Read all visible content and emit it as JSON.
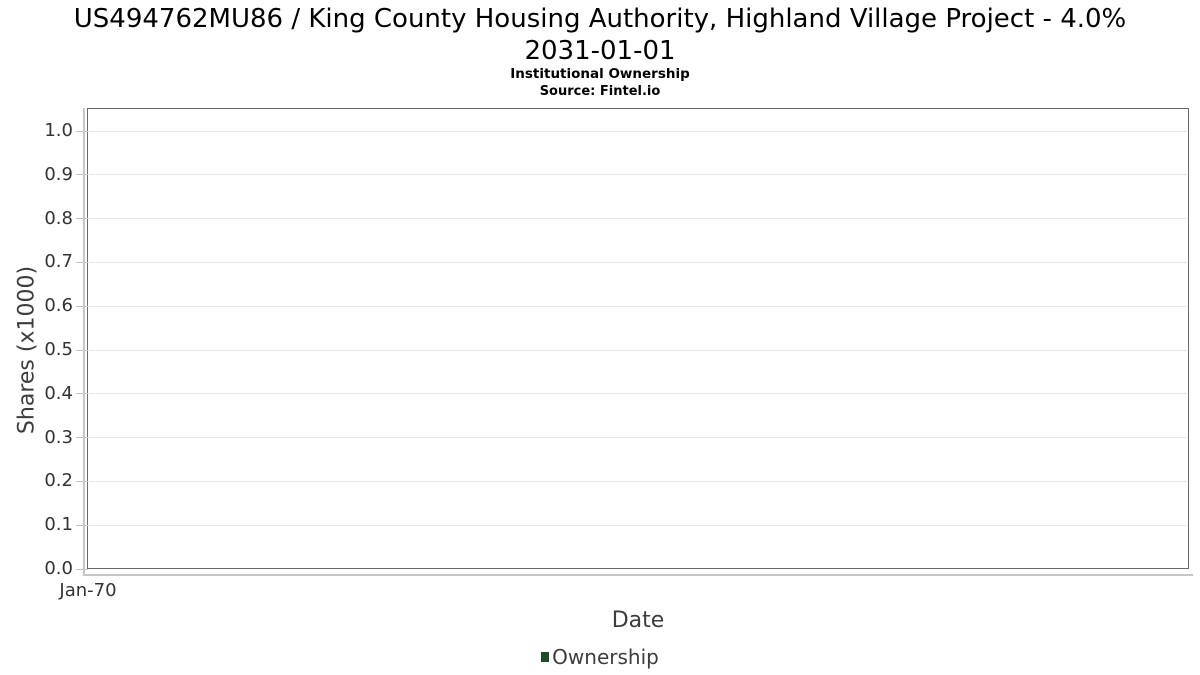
{
  "header": {
    "title_line1": "US494762MU86 / King County Housing Authority, Highland Village Project - 4.0%",
    "title_line2": "2031-01-01",
    "subtitle": "Institutional Ownership",
    "source": "Source: Fintel.io"
  },
  "chart_data": {
    "type": "line",
    "title": "US494762MU86 / King County Housing Authority, Highland Village Project - 4.0% 2031-01-01",
    "subtitle": "Institutional Ownership",
    "source": "Source: Fintel.io",
    "xlabel": "Date",
    "ylabel": "Shares (x1000)",
    "ylim": [
      0.0,
      1.05
    ],
    "yticks": [
      0.0,
      0.1,
      0.2,
      0.3,
      0.4,
      0.5,
      0.6,
      0.7,
      0.8,
      0.9,
      1.0
    ],
    "xticks": [
      "Jan-70"
    ],
    "grid": true,
    "legend_position": "bottom",
    "series": [
      {
        "name": "Ownership",
        "color": "#1f4b28",
        "x": [],
        "values": []
      }
    ]
  },
  "colors": {
    "plot_border": "#6a6a6a",
    "gridline": "#e6e6e6",
    "axis_line": "#c6c6c6",
    "tick_label": "#333333",
    "axis_title": "#3d3d3d",
    "title_text": "#000000",
    "legend_marker": "#1f4b28"
  }
}
